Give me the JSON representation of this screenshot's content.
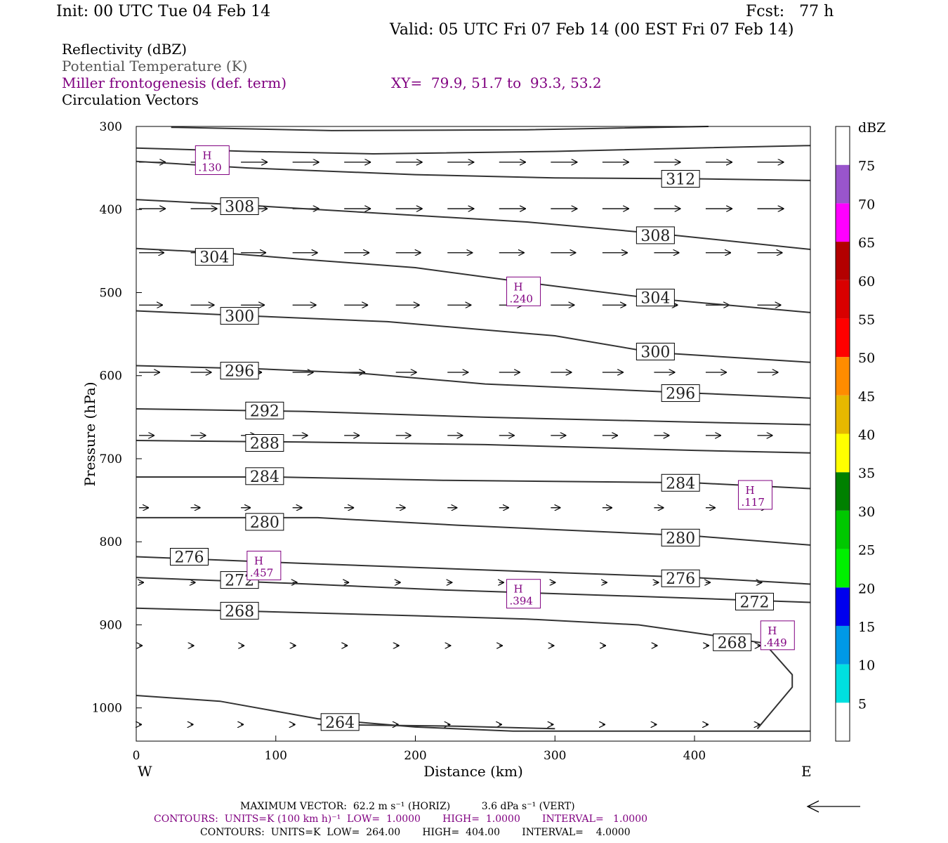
{
  "header": {
    "init": "Init: 00 UTC Tue 04 Feb 14",
    "fcst": "Fcst:   77 h",
    "valid": "Valid: 05 UTC Fri 07 Feb 14 (00 EST Fri 07 Feb 14)"
  },
  "fields": {
    "reflectivity": "Reflectivity (dBZ)",
    "theta": "Potential Temperature (K)",
    "miller": "Miller frontogenesis (def. term)",
    "xy": "XY=  79.9, 51.7 to  93.3, 53.2",
    "vectors": "Circulation Vectors"
  },
  "footer": {
    "max_vector": "MAXIMUM VECTOR:  62.2 m s⁻¹ (HORIZ)          3.6 dPa s⁻¹ (VERT)",
    "contours_fg": "CONTOURS:  UNITS=K (100 km h)⁻¹  LOW=  1.0000       HIGH=  1.0000       INTERVAL=   1.0000",
    "contours_theta": "CONTOURS:  UNITS=K  LOW=  264.00       HIGH=  404.00       INTERVAL=    4.0000"
  },
  "colors": {
    "theta": "#333333",
    "miller": "#800080",
    "dbz": [
      "#ffffff",
      "#00e0e0",
      "#0099e6",
      "#0000ee",
      "#00f000",
      "#00c800",
      "#008000",
      "#ffff00",
      "#e6b800",
      "#ff8c00",
      "#ff0000",
      "#d90000",
      "#b30000",
      "#ff00ff",
      "#9955cc",
      "#ffffff"
    ]
  },
  "chart_data": {
    "type": "cross-section",
    "x_label": "Distance (km)",
    "y_label": "Pressure (hPa)",
    "x_range": [
      0,
      483
    ],
    "y_range": [
      300,
      1040
    ],
    "x_ticks": [
      0,
      100,
      200,
      300,
      400
    ],
    "y_ticks": [
      300,
      400,
      500,
      600,
      700,
      800,
      900,
      1000
    ],
    "left_end_label": "W",
    "right_end_label": "E",
    "colorbar": {
      "label": "dBZ",
      "levels": [
        5,
        10,
        15,
        20,
        25,
        30,
        35,
        40,
        45,
        50,
        55,
        60,
        65,
        70,
        75
      ]
    },
    "theta_contours": [
      {
        "value": 312,
        "label": "312",
        "points": [
          [
            0,
            342
          ],
          [
            80,
            350
          ],
          [
            200,
            358
          ],
          [
            300,
            362
          ],
          [
            400,
            363
          ],
          [
            483,
            365
          ]
        ],
        "labels_at": [
          [
            390,
            363
          ]
        ]
      },
      {
        "value": null,
        "points": [
          [
            0,
            326
          ],
          [
            80,
            330
          ],
          [
            170,
            333
          ],
          [
            300,
            330
          ],
          [
            400,
            326
          ],
          [
            483,
            323
          ]
        ],
        "labels_at": []
      },
      {
        "value": null,
        "points": [
          [
            25,
            301
          ],
          [
            140,
            305
          ],
          [
            280,
            304
          ],
          [
            410,
            300
          ]
        ],
        "labels_at": []
      },
      {
        "value": 308,
        "label": "308",
        "points": [
          [
            0,
            388
          ],
          [
            80,
            395
          ],
          [
            180,
            405
          ],
          [
            280,
            415
          ],
          [
            380,
            430
          ],
          [
            483,
            448
          ]
        ],
        "labels_at": [
          [
            74,
            396
          ],
          [
            372,
            431
          ]
        ]
      },
      {
        "value": 304,
        "label": "304",
        "points": [
          [
            0,
            447
          ],
          [
            60,
            452
          ],
          [
            120,
            460
          ],
          [
            200,
            470
          ],
          [
            280,
            488
          ],
          [
            370,
            507
          ],
          [
            483,
            524
          ]
        ],
        "labels_at": [
          [
            56,
            457
          ],
          [
            372,
            506
          ]
        ]
      },
      {
        "value": 300,
        "label": "300",
        "points": [
          [
            0,
            522
          ],
          [
            80,
            528
          ],
          [
            180,
            535
          ],
          [
            300,
            552
          ],
          [
            370,
            572
          ],
          [
            483,
            584
          ]
        ],
        "labels_at": [
          [
            74,
            528
          ],
          [
            372,
            571
          ]
        ]
      },
      {
        "value": 296,
        "label": "296",
        "points": [
          [
            0,
            588
          ],
          [
            90,
            592
          ],
          [
            160,
            597
          ],
          [
            250,
            610
          ],
          [
            400,
            621
          ],
          [
            483,
            627
          ]
        ],
        "labels_at": [
          [
            74,
            594
          ],
          [
            390,
            621
          ]
        ]
      },
      {
        "value": 292,
        "label": "292",
        "points": [
          [
            0,
            640
          ],
          [
            120,
            643
          ],
          [
            250,
            650
          ],
          [
            400,
            656
          ],
          [
            483,
            659
          ]
        ],
        "labels_at": [
          [
            92,
            642
          ]
        ]
      },
      {
        "value": 288,
        "label": "288",
        "points": [
          [
            0,
            678
          ],
          [
            120,
            680
          ],
          [
            250,
            683
          ],
          [
            400,
            690
          ],
          [
            483,
            693
          ]
        ],
        "labels_at": [
          [
            92,
            681
          ]
        ]
      },
      {
        "value": 284,
        "label": "284",
        "points": [
          [
            0,
            722
          ],
          [
            100,
            722
          ],
          [
            220,
            726
          ],
          [
            400,
            729
          ],
          [
            483,
            736
          ]
        ],
        "labels_at": [
          [
            92,
            721
          ],
          [
            390,
            729
          ]
        ]
      },
      {
        "value": 280,
        "label": "280",
        "points": [
          [
            0,
            771
          ],
          [
            130,
            771
          ],
          [
            230,
            780
          ],
          [
            400,
            793
          ],
          [
            483,
            804
          ]
        ],
        "labels_at": [
          [
            92,
            776
          ],
          [
            390,
            795
          ]
        ]
      },
      {
        "value": 276,
        "label": "276",
        "points": [
          [
            0,
            818
          ],
          [
            120,
            826
          ],
          [
            250,
            834
          ],
          [
            400,
            843
          ],
          [
            483,
            851
          ]
        ],
        "labels_at": [
          [
            38,
            818
          ],
          [
            390,
            844
          ]
        ]
      },
      {
        "value": 272,
        "label": "272",
        "points": [
          [
            0,
            843
          ],
          [
            110,
            850
          ],
          [
            220,
            858
          ],
          [
            400,
            868
          ],
          [
            483,
            873
          ]
        ],
        "labels_at": [
          [
            74,
            846
          ],
          [
            443,
            872
          ]
        ]
      },
      {
        "value": 268,
        "label": "268",
        "points": [
          [
            0,
            880
          ],
          [
            90,
            884
          ],
          [
            200,
            889
          ],
          [
            280,
            893
          ],
          [
            360,
            900
          ],
          [
            410,
            912
          ],
          [
            450,
            922
          ],
          [
            470,
            960
          ],
          [
            470,
            975
          ],
          [
            445,
            1025
          ]
        ],
        "labels_at": [
          [
            74,
            883
          ],
          [
            427,
            921
          ]
        ]
      },
      {
        "value": 264,
        "label": "264",
        "points": [
          [
            0,
            985
          ],
          [
            60,
            992
          ],
          [
            130,
            1013
          ],
          [
            200,
            1023
          ],
          [
            270,
            1028
          ],
          [
            483,
            1028
          ]
        ],
        "labels_at": [
          [
            146,
            1017
          ]
        ]
      },
      {
        "value": null,
        "points": [
          [
            130,
            1020
          ],
          [
            230,
            1022
          ],
          [
            300,
            1025
          ]
        ],
        "labels_at": []
      }
    ],
    "miller_maxima": [
      {
        "label": "H",
        "value": ".130",
        "x": 55,
        "p": 341
      },
      {
        "label": "H",
        "value": ".240",
        "x": 278,
        "p": 499
      },
      {
        "label": "H",
        "value": ".117",
        "x": 444,
        "p": 744
      },
      {
        "label": "H",
        "value": ".457",
        "x": 92,
        "p": 829
      },
      {
        "label": "H",
        "value": ".394",
        "x": 278,
        "p": 863
      },
      {
        "label": "H",
        "value": ".449",
        "x": 460,
        "p": 913
      }
    ],
    "vector_rows": [
      {
        "p": 343,
        "x": [
          0,
          37,
          73,
          110,
          147,
          184,
          221,
          258,
          295,
          332,
          369,
          406,
          443
        ],
        "len": 38
      },
      {
        "p": 399,
        "x": [
          0,
          37,
          73,
          110,
          147,
          184,
          221,
          258,
          295,
          332,
          369,
          406,
          443
        ],
        "len": 38
      },
      {
        "p": 452,
        "x": [
          0,
          37,
          73,
          110,
          147,
          184,
          221,
          258,
          295,
          332,
          369,
          406,
          443
        ],
        "len": 36
      },
      {
        "p": 515,
        "x": [
          0,
          37,
          73,
          110,
          147,
          184,
          221,
          258,
          295,
          332,
          369,
          406,
          443
        ],
        "len": 34
      },
      {
        "p": 596,
        "x": [
          0,
          37,
          73,
          110,
          147,
          184,
          221,
          258,
          295,
          332,
          369,
          406,
          443
        ],
        "len": 30
      },
      {
        "p": 672,
        "x": [
          0,
          37,
          73,
          110,
          147,
          184,
          221,
          258,
          295,
          332,
          369,
          406,
          443
        ],
        "len": 22
      },
      {
        "p": 759,
        "x": [
          0,
          37,
          73,
          110,
          147,
          184,
          221,
          258,
          295,
          332,
          369,
          406,
          443
        ],
        "len": 14
      },
      {
        "p": 849,
        "x": [
          0,
          37,
          73,
          110,
          147,
          184,
          221,
          258,
          295,
          332,
          369,
          406,
          443
        ],
        "len": 7
      },
      {
        "p": 925,
        "x": [
          0,
          37,
          73,
          110,
          147,
          184,
          221,
          258,
          295,
          332,
          369,
          406,
          443
        ],
        "len": 5
      },
      {
        "p": 1020,
        "x": [
          0,
          37,
          73,
          110,
          147,
          184,
          221,
          258,
          295,
          332,
          369,
          406,
          443
        ],
        "len": 4
      }
    ]
  }
}
